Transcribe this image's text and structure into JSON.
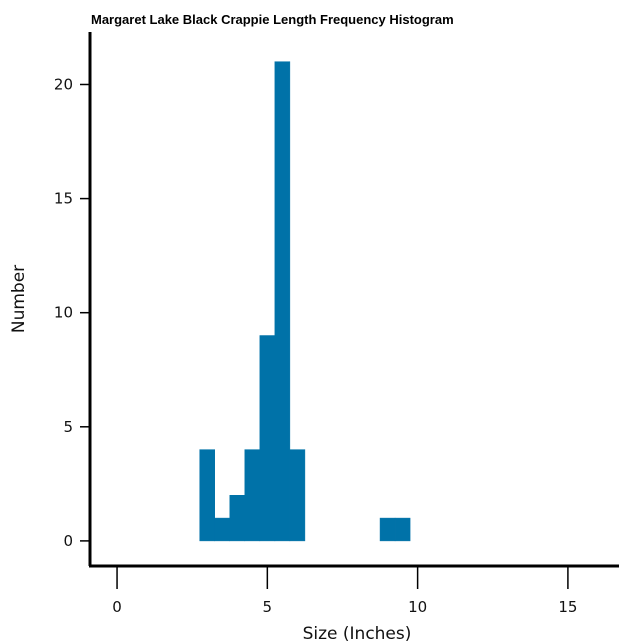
{
  "chart_data": {
    "type": "bar",
    "title": "Margaret Lake Black Crappie Length Frequency Histogram",
    "xlabel": "Size (Inches)",
    "ylabel": "Number",
    "xlim": [
      -0.9,
      16.7
    ],
    "ylim": [
      -1.1,
      22.3
    ],
    "x_ticks": [
      "0",
      "5",
      "10",
      "15"
    ],
    "y_ticks": [
      "0",
      "5",
      "10",
      "15",
      "20"
    ],
    "bin_width": 0.5,
    "bins": [
      {
        "x0": 2.75,
        "x1": 3.25,
        "count": 4
      },
      {
        "x0": 3.25,
        "x1": 3.75,
        "count": 1
      },
      {
        "x0": 3.75,
        "x1": 4.25,
        "count": 2
      },
      {
        "x0": 4.25,
        "x1": 4.75,
        "count": 4
      },
      {
        "x0": 4.75,
        "x1": 5.25,
        "count": 9
      },
      {
        "x0": 5.25,
        "x1": 5.75,
        "count": 21
      },
      {
        "x0": 5.75,
        "x1": 6.25,
        "count": 4
      },
      {
        "x0": 8.75,
        "x1": 9.25,
        "count": 1
      },
      {
        "x0": 9.25,
        "x1": 9.75,
        "count": 1
      }
    ],
    "bar_color": "#0072a8",
    "grid": false,
    "legend": "none"
  }
}
